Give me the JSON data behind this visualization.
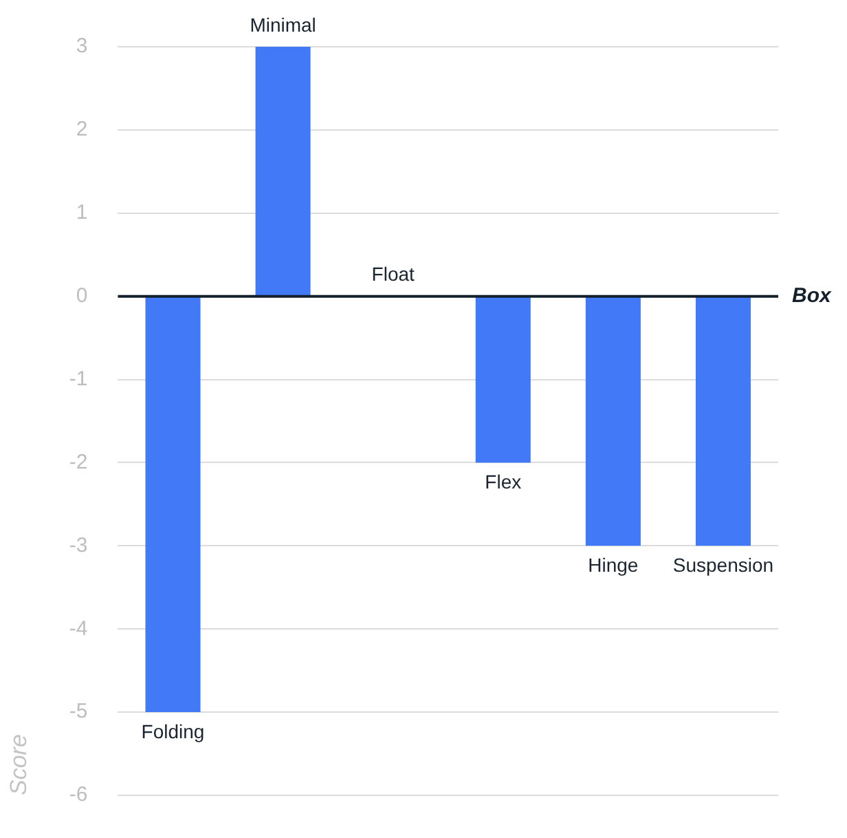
{
  "chart_data": {
    "type": "bar",
    "ylabel": "Score",
    "categories": [
      "Folding",
      "Minimal",
      "Float",
      "Flex",
      "Hinge",
      "Suspension"
    ],
    "values": [
      -5,
      3,
      0,
      -2,
      -3,
      -3
    ],
    "color": "#4179f7",
    "ylim": [
      -6,
      3
    ],
    "yticks": [
      -6,
      -5,
      -4,
      -3,
      -2,
      -1,
      0,
      1,
      2,
      3
    ],
    "grid": "y",
    "tick_labels": "y",
    "ref_lines": [
      {
        "axis": "y",
        "value": 0,
        "label": "Box",
        "color": "#14202c"
      }
    ]
  }
}
